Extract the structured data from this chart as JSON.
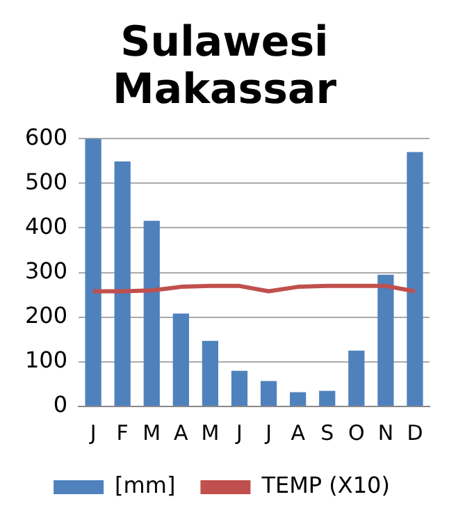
{
  "chart_data": {
    "type": "bar",
    "title": "Sulawesi Makassar",
    "categories": [
      "J",
      "F",
      "M",
      "A",
      "M",
      "J",
      "J",
      "A",
      "S",
      "O",
      "N",
      "D"
    ],
    "series": [
      {
        "name": "[mm]",
        "color": "#4f81bd",
        "values": [
          600,
          549,
          416,
          208,
          147,
          80,
          57,
          32,
          35,
          125,
          295,
          570
        ]
      },
      {
        "name": "TEMP (X10)",
        "type": "line",
        "color": "#c0504d",
        "values": [
          258,
          258,
          260,
          268,
          270,
          270,
          258,
          268,
          270,
          270,
          270,
          258
        ]
      }
    ],
    "ylim": [
      0,
      600
    ],
    "yticks": [
      0,
      100,
      200,
      300,
      400,
      500,
      600
    ],
    "grid": "y",
    "legend": "bottom",
    "marker": "none"
  }
}
